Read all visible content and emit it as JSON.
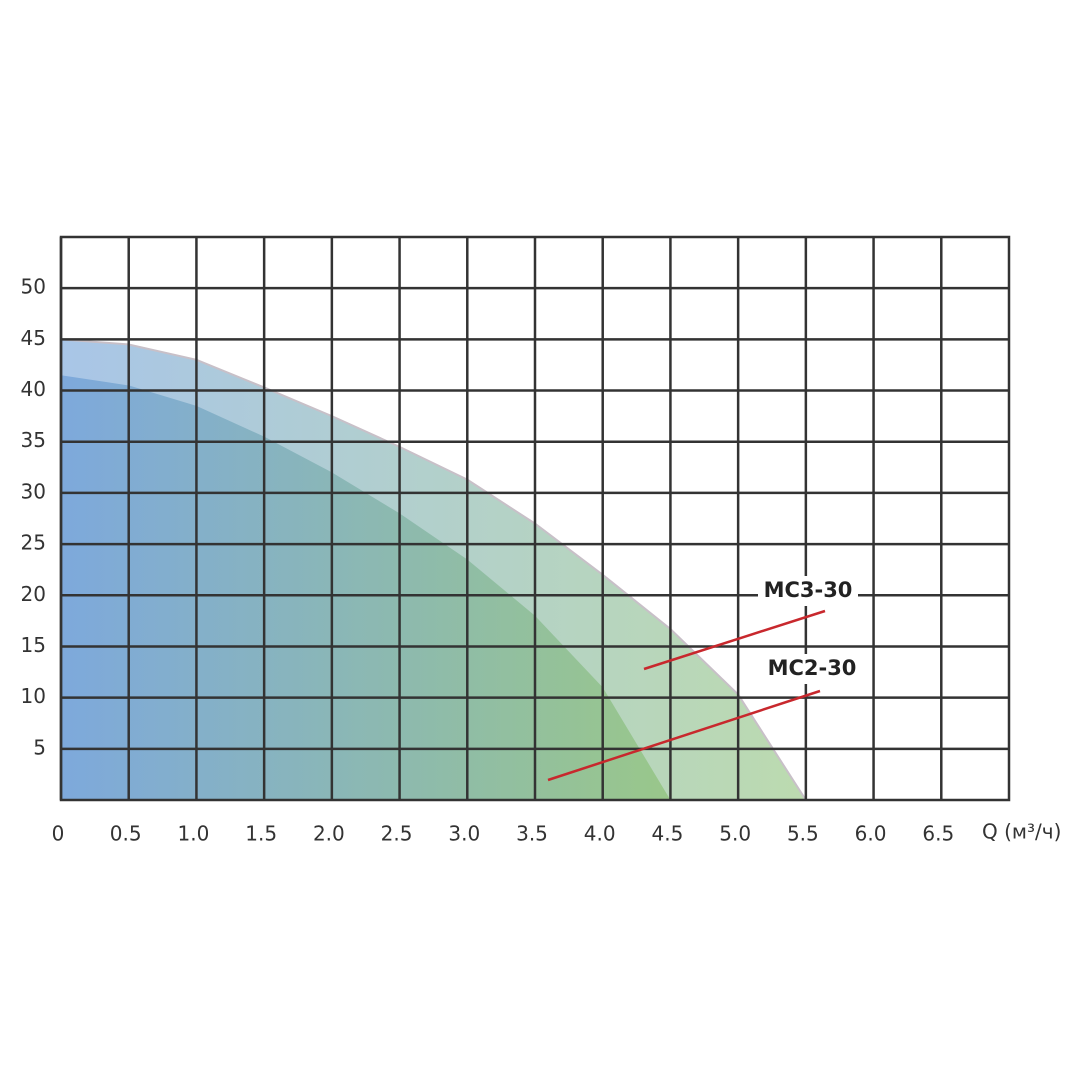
{
  "chart_data": {
    "type": "area",
    "x_label": "Q (м³/ч)",
    "xlim": [
      0,
      7
    ],
    "ylim": [
      0,
      55
    ],
    "xticks": [
      0,
      0.5,
      {
        "value": 1,
        "label": "1.0"
      },
      1.5,
      {
        "value": 2,
        "label": "2.0"
      },
      2.5,
      {
        "value": 3,
        "label": "3.0"
      },
      3.5,
      {
        "value": 4,
        "label": "4.0"
      },
      4.5,
      {
        "value": 5,
        "label": "5.0"
      },
      5.5,
      {
        "value": 6,
        "label": "6.0"
      },
      6.5
    ],
    "yticks": [
      5,
      10,
      15,
      20,
      25,
      30,
      35,
      40,
      45,
      50
    ],
    "grid": true,
    "gradient": [
      "#6f9fd8",
      "#8fc27a"
    ],
    "series": [
      {
        "name": "MC3-30",
        "x": [
          0,
          0.5,
          1,
          1.5,
          2,
          2.5,
          3,
          3.5,
          4,
          4.5,
          5,
          5.5
        ],
        "values": [
          45,
          44.5,
          43,
          40.3,
          37.5,
          34.5,
          31.3,
          27,
          22,
          16.7,
          10.3,
          0
        ]
      },
      {
        "name": "MC2-30",
        "x": [
          0,
          0.5,
          1,
          1.5,
          2,
          2.5,
          3,
          3.5,
          4,
          4.5
        ],
        "values": [
          41.5,
          40.5,
          38.5,
          35.5,
          32,
          28,
          23.5,
          18,
          11,
          0
        ]
      }
    ]
  }
}
